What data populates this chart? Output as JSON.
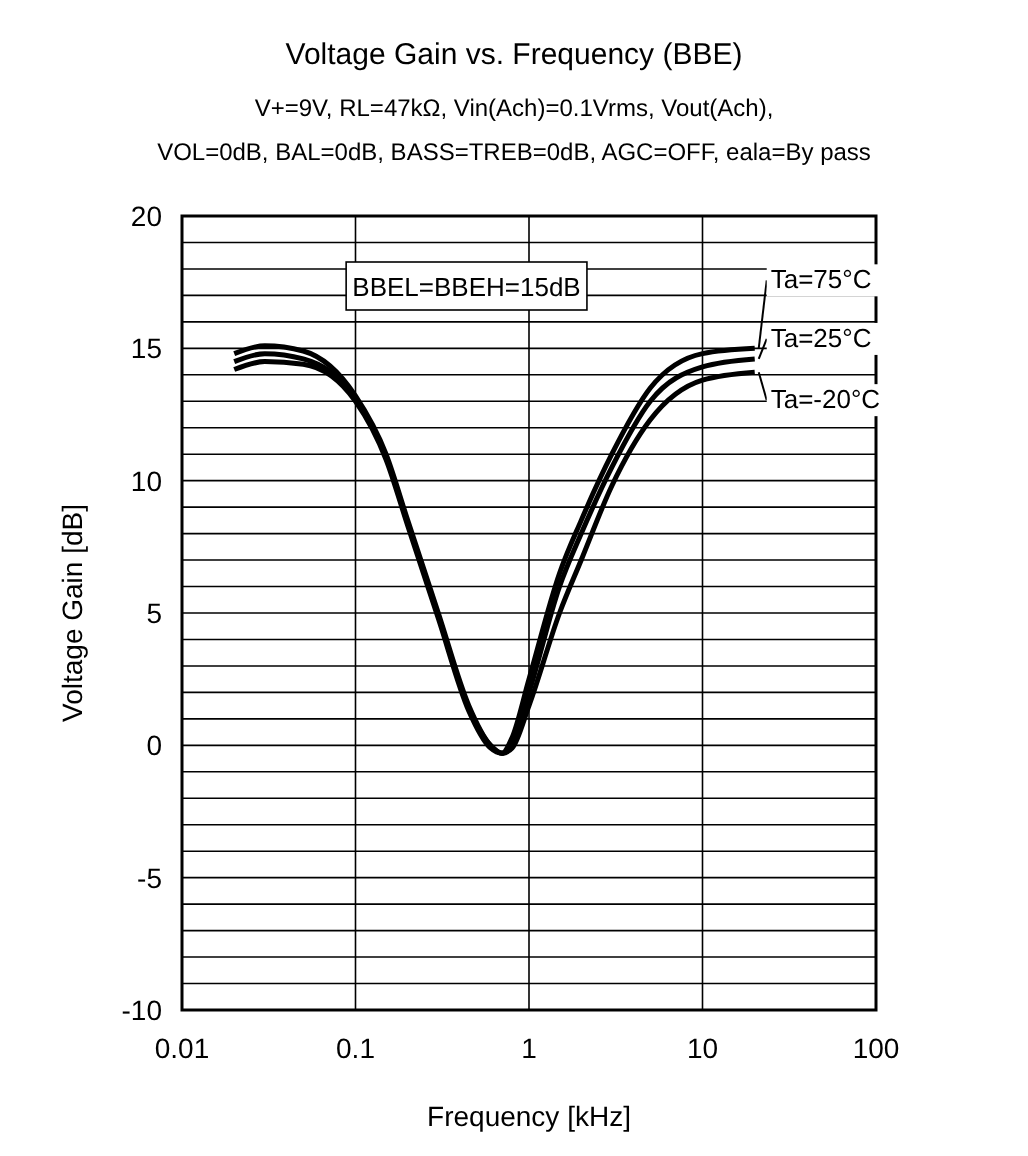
{
  "chart_data": {
    "type": "line",
    "title": "Voltage Gain vs. Frequency (BBE)",
    "subtitle": "V+=9V, RL=47kΩ, Vin(Ach)=0.1Vrms,  Vout(Ach),\nVOL=0dB, BAL=0dB, BASS=TREB=0dB, AGC=OFF,  eala=By pass",
    "xlabel": "Frequency [kHz]",
    "ylabel": "Voltage Gain [dB]",
    "log": "x",
    "grid": true,
    "legend": "right",
    "marker": "none",
    "line_style": "solid",
    "xlim": [
      0.01,
      100
    ],
    "xticks": [
      0.01,
      0.1,
      1,
      10,
      100
    ],
    "ylim": [
      -10,
      20
    ],
    "yticks": [
      -10,
      {
        "value": -9,
        "label": null
      },
      {
        "value": -8,
        "label": null
      },
      {
        "value": -7,
        "label": null
      },
      {
        "value": -6,
        "label": null
      },
      -5,
      {
        "value": -4,
        "label": null
      },
      {
        "value": -3,
        "label": null
      },
      {
        "value": -2,
        "label": null
      },
      {
        "value": -1,
        "label": null
      },
      0,
      {
        "value": 1,
        "label": null
      },
      {
        "value": 2,
        "label": null
      },
      {
        "value": 3,
        "label": null
      },
      {
        "value": 4,
        "label": null
      },
      5,
      {
        "value": 6,
        "label": null
      },
      {
        "value": 7,
        "label": null
      },
      {
        "value": 8,
        "label": null
      },
      {
        "value": 9,
        "label": null
      },
      10,
      {
        "value": 11,
        "label": null
      },
      {
        "value": 12,
        "label": null
      },
      {
        "value": 13,
        "label": null
      },
      {
        "value": 14,
        "label": null
      },
      15,
      {
        "value": 16,
        "label": null
      },
      {
        "value": 17,
        "label": null
      },
      {
        "value": 18,
        "label": null
      },
      {
        "value": 19,
        "label": null
      },
      20
    ],
    "annotations": [
      "BBEL=BBEH=15dB"
    ],
    "x": [
      0.02,
      0.03,
      0.05,
      0.1,
      0.15,
      0.2,
      0.3,
      0.45,
      0.6,
      0.7,
      0.8,
      1,
      1.5,
      2,
      3,
      5,
      10,
      20
    ],
    "series": [
      {
        "name": "Ta=75°C",
        "color": "#000000",
        "values": [
          14.8,
          15.1,
          14.9,
          13.2,
          11,
          8.5,
          5,
          1.5,
          0,
          -0.3,
          0.3,
          2.5,
          6.5,
          8.5,
          11,
          13.5,
          14.8,
          15
        ]
      },
      {
        "name": "Ta=25°C",
        "color": "#000000",
        "values": [
          14.5,
          14.8,
          14.6,
          13.1,
          10.9,
          8.4,
          4.9,
          1.4,
          0,
          -0.3,
          0.1,
          2,
          6,
          8,
          10.5,
          13,
          14.3,
          14.6
        ]
      },
      {
        "name": "Ta=-20°C",
        "color": "#000000",
        "values": [
          14.2,
          14.5,
          14.4,
          13,
          10.8,
          8.3,
          4.8,
          1.3,
          -0.1,
          -0.3,
          -0.1,
          1.5,
          5,
          7,
          9.8,
          12.3,
          13.8,
          14.1
        ]
      }
    ]
  }
}
